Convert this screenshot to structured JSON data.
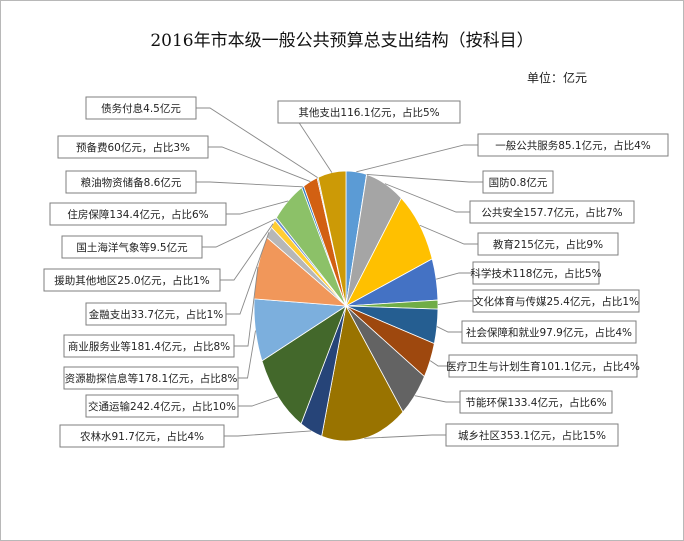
{
  "chart_data": {
    "type": "pie",
    "title": "2016年市本级一般公共预算总支出结构（按科目）",
    "unit": "单位：亿元",
    "slices": [
      {
        "label": "一般公共服务85.1亿元，占比4%",
        "value": 85.1,
        "color": "#5b9bd5"
      },
      {
        "label": "国防0.8亿元",
        "value": 0.8,
        "color": "#ed7d31"
      },
      {
        "label": "公共安全157.7亿元，占比7%",
        "value": 157.7,
        "color": "#a5a5a5"
      },
      {
        "label": "教育215亿元，占比9%",
        "value": 215,
        "color": "#ffc000"
      },
      {
        "label": "科学技术118亿元，占比5%",
        "value": 118,
        "color": "#4472c4"
      },
      {
        "label": "文化体育与传媒25.4亿元，占比1%",
        "value": 25.4,
        "color": "#70ad47"
      },
      {
        "label": "社会保障和就业97.9亿元，占比4%",
        "value": 97.9,
        "color": "#255e91"
      },
      {
        "label": "医疗卫生与计划生育101.1亿元，占比4%",
        "value": 101.1,
        "color": "#9e480e"
      },
      {
        "label": "节能环保133.4亿元，占比6%",
        "value": 133.4,
        "color": "#636363"
      },
      {
        "label": "城乡社区353.1亿元，占比15%",
        "value": 353.1,
        "color": "#997300"
      },
      {
        "label": "农林水91.7亿元，占比4%",
        "value": 91.7,
        "color": "#264478"
      },
      {
        "label": "交通运输242.4亿元，占比10%",
        "value": 242.4,
        "color": "#43682b"
      },
      {
        "label": "资源勘探信息等178.1亿元，占比8%",
        "value": 178.1,
        "color": "#7cafdd"
      },
      {
        "label": "商业服务业等181.4亿元，占比8%",
        "value": 181.4,
        "color": "#f1975a"
      },
      {
        "label": "金融支出33.7亿元，占比1%",
        "value": 33.7,
        "color": "#b7b7b7"
      },
      {
        "label": "援助其他地区25.0亿元，占比1%",
        "value": 25.0,
        "color": "#ffcd33"
      },
      {
        "label": "国土海洋气象等9.5亿元",
        "value": 9.5,
        "color": "#698ed0"
      },
      {
        "label": "住房保障134.4亿元，占比6%",
        "value": 134.4,
        "color": "#8cc168"
      },
      {
        "label": "粮油物资储备8.6亿元",
        "value": 8.6,
        "color": "#327dc2"
      },
      {
        "label": "预备费60亿元，占比3%",
        "value": 60,
        "color": "#d26012"
      },
      {
        "label": "债务付息4.5亿元",
        "value": 4.5,
        "color": "#848484"
      },
      {
        "label": "其他支出116.1亿元，占比5%",
        "value": 116.1,
        "color": "#cc9a06"
      }
    ]
  }
}
